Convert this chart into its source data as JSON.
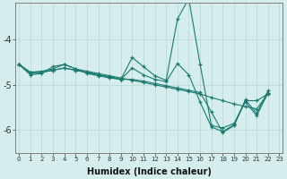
{
  "xlabel": "Humidex (Indice chaleur)",
  "bg_color": "#d5eded",
  "grid_color": "#b8d8d8",
  "line_color": "#1a7a6e",
  "xlim": [
    -0.3,
    23.3
  ],
  "ylim": [
    -6.5,
    -3.2
  ],
  "x_ticks": [
    0,
    1,
    2,
    3,
    4,
    5,
    6,
    7,
    8,
    9,
    10,
    11,
    12,
    13,
    14,
    15,
    16,
    17,
    18,
    19,
    20,
    21,
    22,
    23
  ],
  "y_ticks": [
    -6,
    -5,
    -4
  ],
  "series": [
    {
      "x": [
        0,
        1,
        2,
        3,
        4,
        5,
        6,
        7,
        8,
        9,
        10,
        11,
        12,
        13,
        14,
        15,
        16,
        17,
        18,
        19,
        20,
        21,
        22
      ],
      "y": [
        -4.55,
        -4.78,
        -4.75,
        -4.6,
        -4.55,
        -4.65,
        -4.75,
        -4.8,
        -4.85,
        -4.88,
        -4.4,
        -4.6,
        -4.8,
        -4.9,
        -3.55,
        -3.1,
        -4.55,
        -5.9,
        -5.95,
        -5.85,
        -5.38,
        -5.68,
        -5.18
      ]
    },
    {
      "x": [
        0,
        1,
        2,
        3,
        4,
        5,
        6,
        7,
        8,
        9,
        10,
        11,
        12,
        13,
        14,
        15,
        16,
        17,
        18,
        19,
        20,
        21,
        22
      ],
      "y": [
        -4.55,
        -4.75,
        -4.72,
        -4.68,
        -4.63,
        -4.68,
        -4.72,
        -4.78,
        -4.82,
        -4.88,
        -4.88,
        -4.92,
        -4.97,
        -5.02,
        -5.07,
        -5.12,
        -5.17,
        -5.6,
        -6.05,
        -5.9,
        -5.35,
        -5.35,
        -5.2
      ]
    },
    {
      "x": [
        0,
        1,
        2,
        3,
        4,
        5,
        6,
        7,
        8,
        9,
        10,
        11,
        12,
        13,
        14,
        15,
        16,
        17,
        18,
        19,
        20,
        21,
        22
      ],
      "y": [
        -4.55,
        -4.73,
        -4.73,
        -4.68,
        -4.63,
        -4.68,
        -4.73,
        -4.78,
        -4.83,
        -4.88,
        -4.63,
        -4.78,
        -4.88,
        -4.93,
        -4.53,
        -4.78,
        -5.38,
        -5.93,
        -6.03,
        -5.88,
        -5.33,
        -5.63,
        -5.13
      ]
    },
    {
      "x": [
        0,
        1,
        2,
        3,
        4,
        5,
        6,
        7,
        8,
        9,
        10,
        11,
        12,
        13,
        14,
        15,
        16,
        17,
        18,
        19,
        20,
        21,
        22
      ],
      "y": [
        -4.55,
        -4.72,
        -4.7,
        -4.65,
        -4.55,
        -4.65,
        -4.7,
        -4.75,
        -4.8,
        -4.85,
        -4.9,
        -4.95,
        -5.0,
        -5.05,
        -5.1,
        -5.15,
        -5.2,
        -5.28,
        -5.35,
        -5.42,
        -5.48,
        -5.53,
        -5.2
      ]
    }
  ]
}
